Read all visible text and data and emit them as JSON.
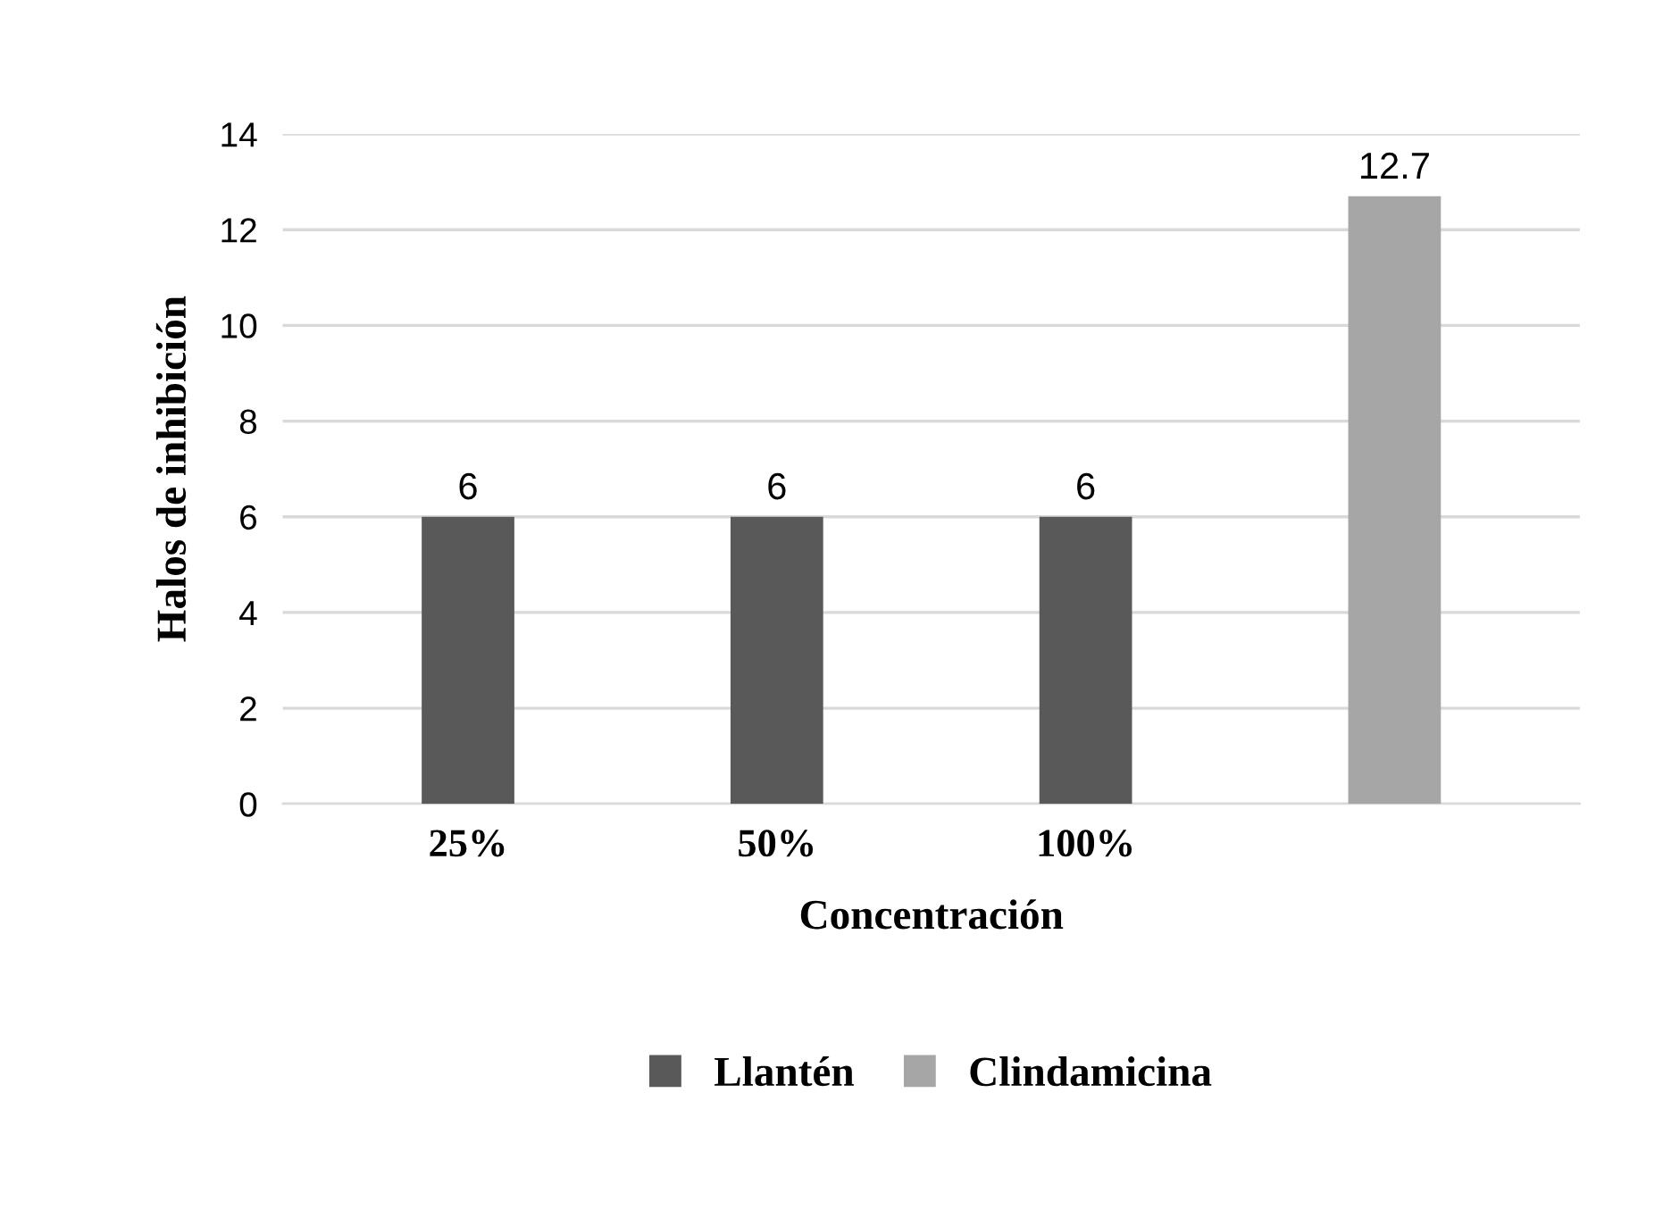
{
  "chart_data": {
    "type": "bar",
    "xlabel": "Concentración",
    "ylabel": "Halos de inhibición",
    "categories": [
      "25%",
      "50%",
      "100%",
      null
    ],
    "series": [
      {
        "name": "Llantén",
        "color": "#595959",
        "values": [
          6,
          6,
          6,
          null
        ]
      },
      {
        "name": "Clindamicina",
        "color": "#a6a6a6",
        "values": [
          null,
          null,
          null,
          12.7
        ]
      }
    ],
    "ylim": [
      0,
      14
    ],
    "yticks": [
      0,
      2,
      4,
      6,
      8,
      10,
      12,
      14
    ],
    "grid": "y",
    "legend": "bottom",
    "data_labels": true
  }
}
